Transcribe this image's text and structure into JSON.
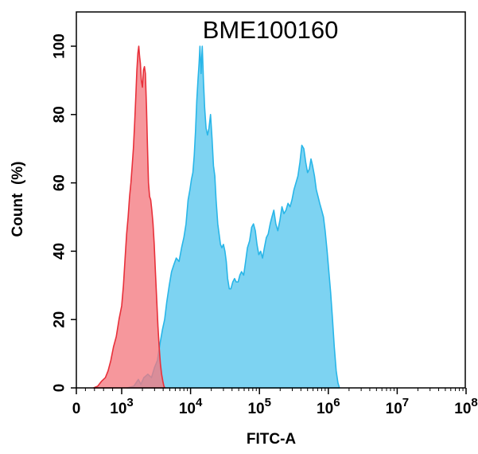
{
  "chart_data": {
    "type": "area",
    "title": "BME100160",
    "xlabel": "FITC-A",
    "ylabel": "Count  (%)",
    "x_scale": "biexponential",
    "xlim": [
      -100,
      100000000
    ],
    "ylim": [
      0,
      105
    ],
    "y_ticks": [
      0,
      20,
      40,
      60,
      80,
      100
    ],
    "x_ticks": [
      {
        "value": 0,
        "base": "0",
        "exp": ""
      },
      {
        "value": 1000,
        "base": "10",
        "exp": "3"
      },
      {
        "value": 10000,
        "base": "10",
        "exp": "4"
      },
      {
        "value": 100000,
        "base": "10",
        "exp": "5"
      },
      {
        "value": 1000000,
        "base": "10",
        "exp": "6"
      },
      {
        "value": 10000000,
        "base": "10",
        "exp": "7"
      },
      {
        "value": 100000000,
        "base": "10",
        "exp": "8"
      }
    ],
    "grid": false,
    "legend": "none",
    "series": [
      {
        "color": "#29b6e8",
        "fill": "#7dd3f2",
        "points": [
          [
            1200,
            0
          ],
          [
            1500,
            0.5
          ],
          [
            1750,
            2.5
          ],
          [
            1900,
            1
          ],
          [
            2100,
            3
          ],
          [
            2400,
            4
          ],
          [
            2700,
            3
          ],
          [
            3000,
            6
          ],
          [
            3300,
            8
          ],
          [
            3600,
            13
          ],
          [
            3900,
            17
          ],
          [
            4200,
            20
          ],
          [
            4500,
            25
          ],
          [
            4900,
            30
          ],
          [
            5300,
            34
          ],
          [
            5700,
            36
          ],
          [
            6200,
            38
          ],
          [
            6800,
            37
          ],
          [
            7400,
            41
          ],
          [
            8000,
            44
          ],
          [
            8600,
            48
          ],
          [
            9200,
            55
          ],
          [
            9800,
            58
          ],
          [
            10300,
            61
          ],
          [
            10800,
            63
          ],
          [
            11300,
            68
          ],
          [
            11800,
            75
          ],
          [
            12300,
            84
          ],
          [
            12800,
            90
          ],
          [
            13300,
            95
          ],
          [
            13700,
            100
          ],
          [
            14200,
            92
          ],
          [
            14800,
            100
          ],
          [
            15400,
            90
          ],
          [
            16000,
            82
          ],
          [
            16800,
            76
          ],
          [
            17600,
            74
          ],
          [
            18500,
            76
          ],
          [
            19500,
            80
          ],
          [
            20500,
            73
          ],
          [
            21500,
            65
          ],
          [
            22500,
            62
          ],
          [
            23500,
            55
          ],
          [
            24800,
            48
          ],
          [
            26000,
            45
          ],
          [
            27200,
            42
          ],
          [
            28500,
            41
          ],
          [
            30000,
            42
          ],
          [
            31500,
            40
          ],
          [
            33000,
            37
          ],
          [
            34500,
            32
          ],
          [
            36500,
            29
          ],
          [
            38500,
            29
          ],
          [
            41000,
            31
          ],
          [
            43500,
            32
          ],
          [
            46000,
            31
          ],
          [
            49000,
            31
          ],
          [
            52000,
            33
          ],
          [
            55000,
            34
          ],
          [
            59000,
            33
          ],
          [
            63000,
            37
          ],
          [
            67000,
            41
          ],
          [
            72000,
            43
          ],
          [
            77000,
            47
          ],
          [
            82000,
            48
          ],
          [
            87000,
            46
          ],
          [
            92000,
            42
          ],
          [
            98000,
            39
          ],
          [
            104000,
            40
          ],
          [
            111000,
            38
          ],
          [
            118000,
            41
          ],
          [
            126000,
            44
          ],
          [
            134000,
            45
          ],
          [
            143000,
            48
          ],
          [
            152000,
            50
          ],
          [
            162000,
            52
          ],
          [
            173000,
            48
          ],
          [
            185000,
            46
          ],
          [
            198000,
            49
          ],
          [
            212000,
            53
          ],
          [
            227000,
            51
          ],
          [
            243000,
            52
          ],
          [
            260000,
            54
          ],
          [
            278000,
            53
          ],
          [
            297000,
            55
          ],
          [
            317000,
            58
          ],
          [
            339000,
            60
          ],
          [
            362000,
            62
          ],
          [
            387000,
            66
          ],
          [
            413000,
            71
          ],
          [
            441000,
            70
          ],
          [
            470000,
            66
          ],
          [
            500000,
            63
          ],
          [
            530000,
            64
          ],
          [
            560000,
            67
          ],
          [
            590000,
            65
          ],
          [
            630000,
            62
          ],
          [
            670000,
            58
          ],
          [
            710000,
            56
          ],
          [
            750000,
            54
          ],
          [
            800000,
            52
          ],
          [
            850000,
            50
          ],
          [
            900000,
            46
          ],
          [
            960000,
            40
          ],
          [
            1020000,
            34
          ],
          [
            1080000,
            28
          ],
          [
            1150000,
            20
          ],
          [
            1220000,
            12
          ],
          [
            1300000,
            5
          ],
          [
            1380000,
            1.5
          ],
          [
            1450000,
            0
          ]
        ]
      },
      {
        "color": "#e8303a",
        "fill": "#f47a80",
        "points": [
          [
            380,
            0
          ],
          [
            470,
            0.5
          ],
          [
            560,
            2
          ],
          [
            640,
            3
          ],
          [
            700,
            5
          ],
          [
            760,
            8
          ],
          [
            820,
            12
          ],
          [
            880,
            15
          ],
          [
            940,
            20
          ],
          [
            1000,
            24
          ],
          [
            1060,
            30
          ],
          [
            1120,
            38
          ],
          [
            1180,
            45
          ],
          [
            1240,
            50
          ],
          [
            1300,
            56
          ],
          [
            1360,
            60
          ],
          [
            1420,
            65
          ],
          [
            1480,
            70
          ],
          [
            1540,
            77
          ],
          [
            1600,
            85
          ],
          [
            1660,
            93
          ],
          [
            1720,
            98
          ],
          [
            1770,
            100
          ],
          [
            1820,
            97
          ],
          [
            1870,
            95
          ],
          [
            1930,
            90
          ],
          [
            2000,
            88
          ],
          [
            2070,
            93
          ],
          [
            2140,
            94
          ],
          [
            2210,
            92
          ],
          [
            2290,
            82
          ],
          [
            2370,
            70
          ],
          [
            2450,
            60
          ],
          [
            2540,
            56
          ],
          [
            2640,
            55
          ],
          [
            2740,
            52
          ],
          [
            2850,
            48
          ],
          [
            2970,
            42
          ],
          [
            3090,
            34
          ],
          [
            3220,
            26
          ],
          [
            3360,
            18
          ],
          [
            3500,
            12
          ],
          [
            3650,
            7
          ],
          [
            3800,
            4
          ],
          [
            3950,
            2
          ],
          [
            4100,
            0.5
          ],
          [
            4250,
            0
          ]
        ]
      }
    ]
  }
}
